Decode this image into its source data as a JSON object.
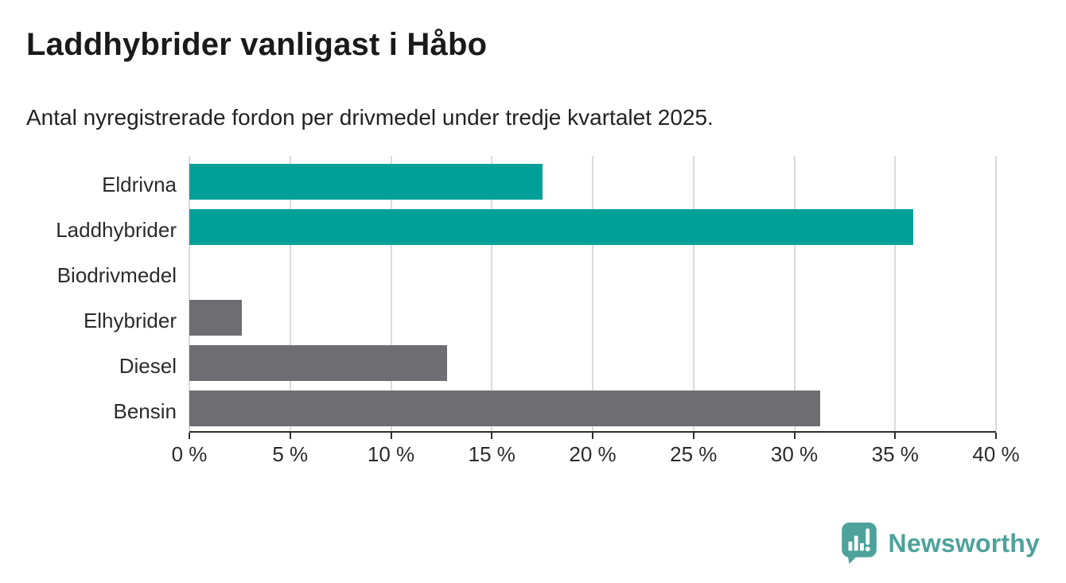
{
  "page": {
    "title": "Laddhybrider vanligast i Håbo",
    "subtitle": "Antal nyregistrerade fordon per drivmedel under tredje kvartalet 2025."
  },
  "chart_data": {
    "type": "bar",
    "orientation": "horizontal",
    "title": "Laddhybrider vanligast i Håbo",
    "subtitle": "Antal nyregistrerade fordon per drivmedel under tredje kvartalet 2025.",
    "categories": [
      "Eldrivna",
      "Laddhybrider",
      "Biodrivmedel",
      "Elhybrider",
      "Diesel",
      "Bensin"
    ],
    "values": [
      17.5,
      35.9,
      0,
      2.6,
      12.8,
      31.3
    ],
    "unit": "%",
    "xlabel": "",
    "ylabel": "",
    "xlim": [
      0,
      40
    ],
    "x_tick_step": 5,
    "x_tick_labels": [
      "0 %",
      "5 %",
      "10 %",
      "15 %",
      "20 %",
      "25 %",
      "30 %",
      "35 %",
      "40 %"
    ],
    "grid": "vertical-only",
    "legend": "none",
    "bar_colors": [
      "#00a099",
      "#00a099",
      "#6e6d72",
      "#6e6d72",
      "#6e6d72",
      "#6e6d72"
    ],
    "highlight_color": "#00a099",
    "default_color": "#6e6d72"
  },
  "branding": {
    "logo_text": "Newsworthy",
    "logo_icon": "newsworthy-speech-bubble-chart-icon",
    "logo_color": "#4da29b"
  },
  "colors": {
    "background": "#ffffff",
    "title_text": "#1a1a1a",
    "subtitle_text": "#222222",
    "axis_line": "#2e2e2e",
    "tick_label": "#2b2b2b",
    "category_label": "#2b2b2b",
    "gridline": "#dbdbdb"
  }
}
